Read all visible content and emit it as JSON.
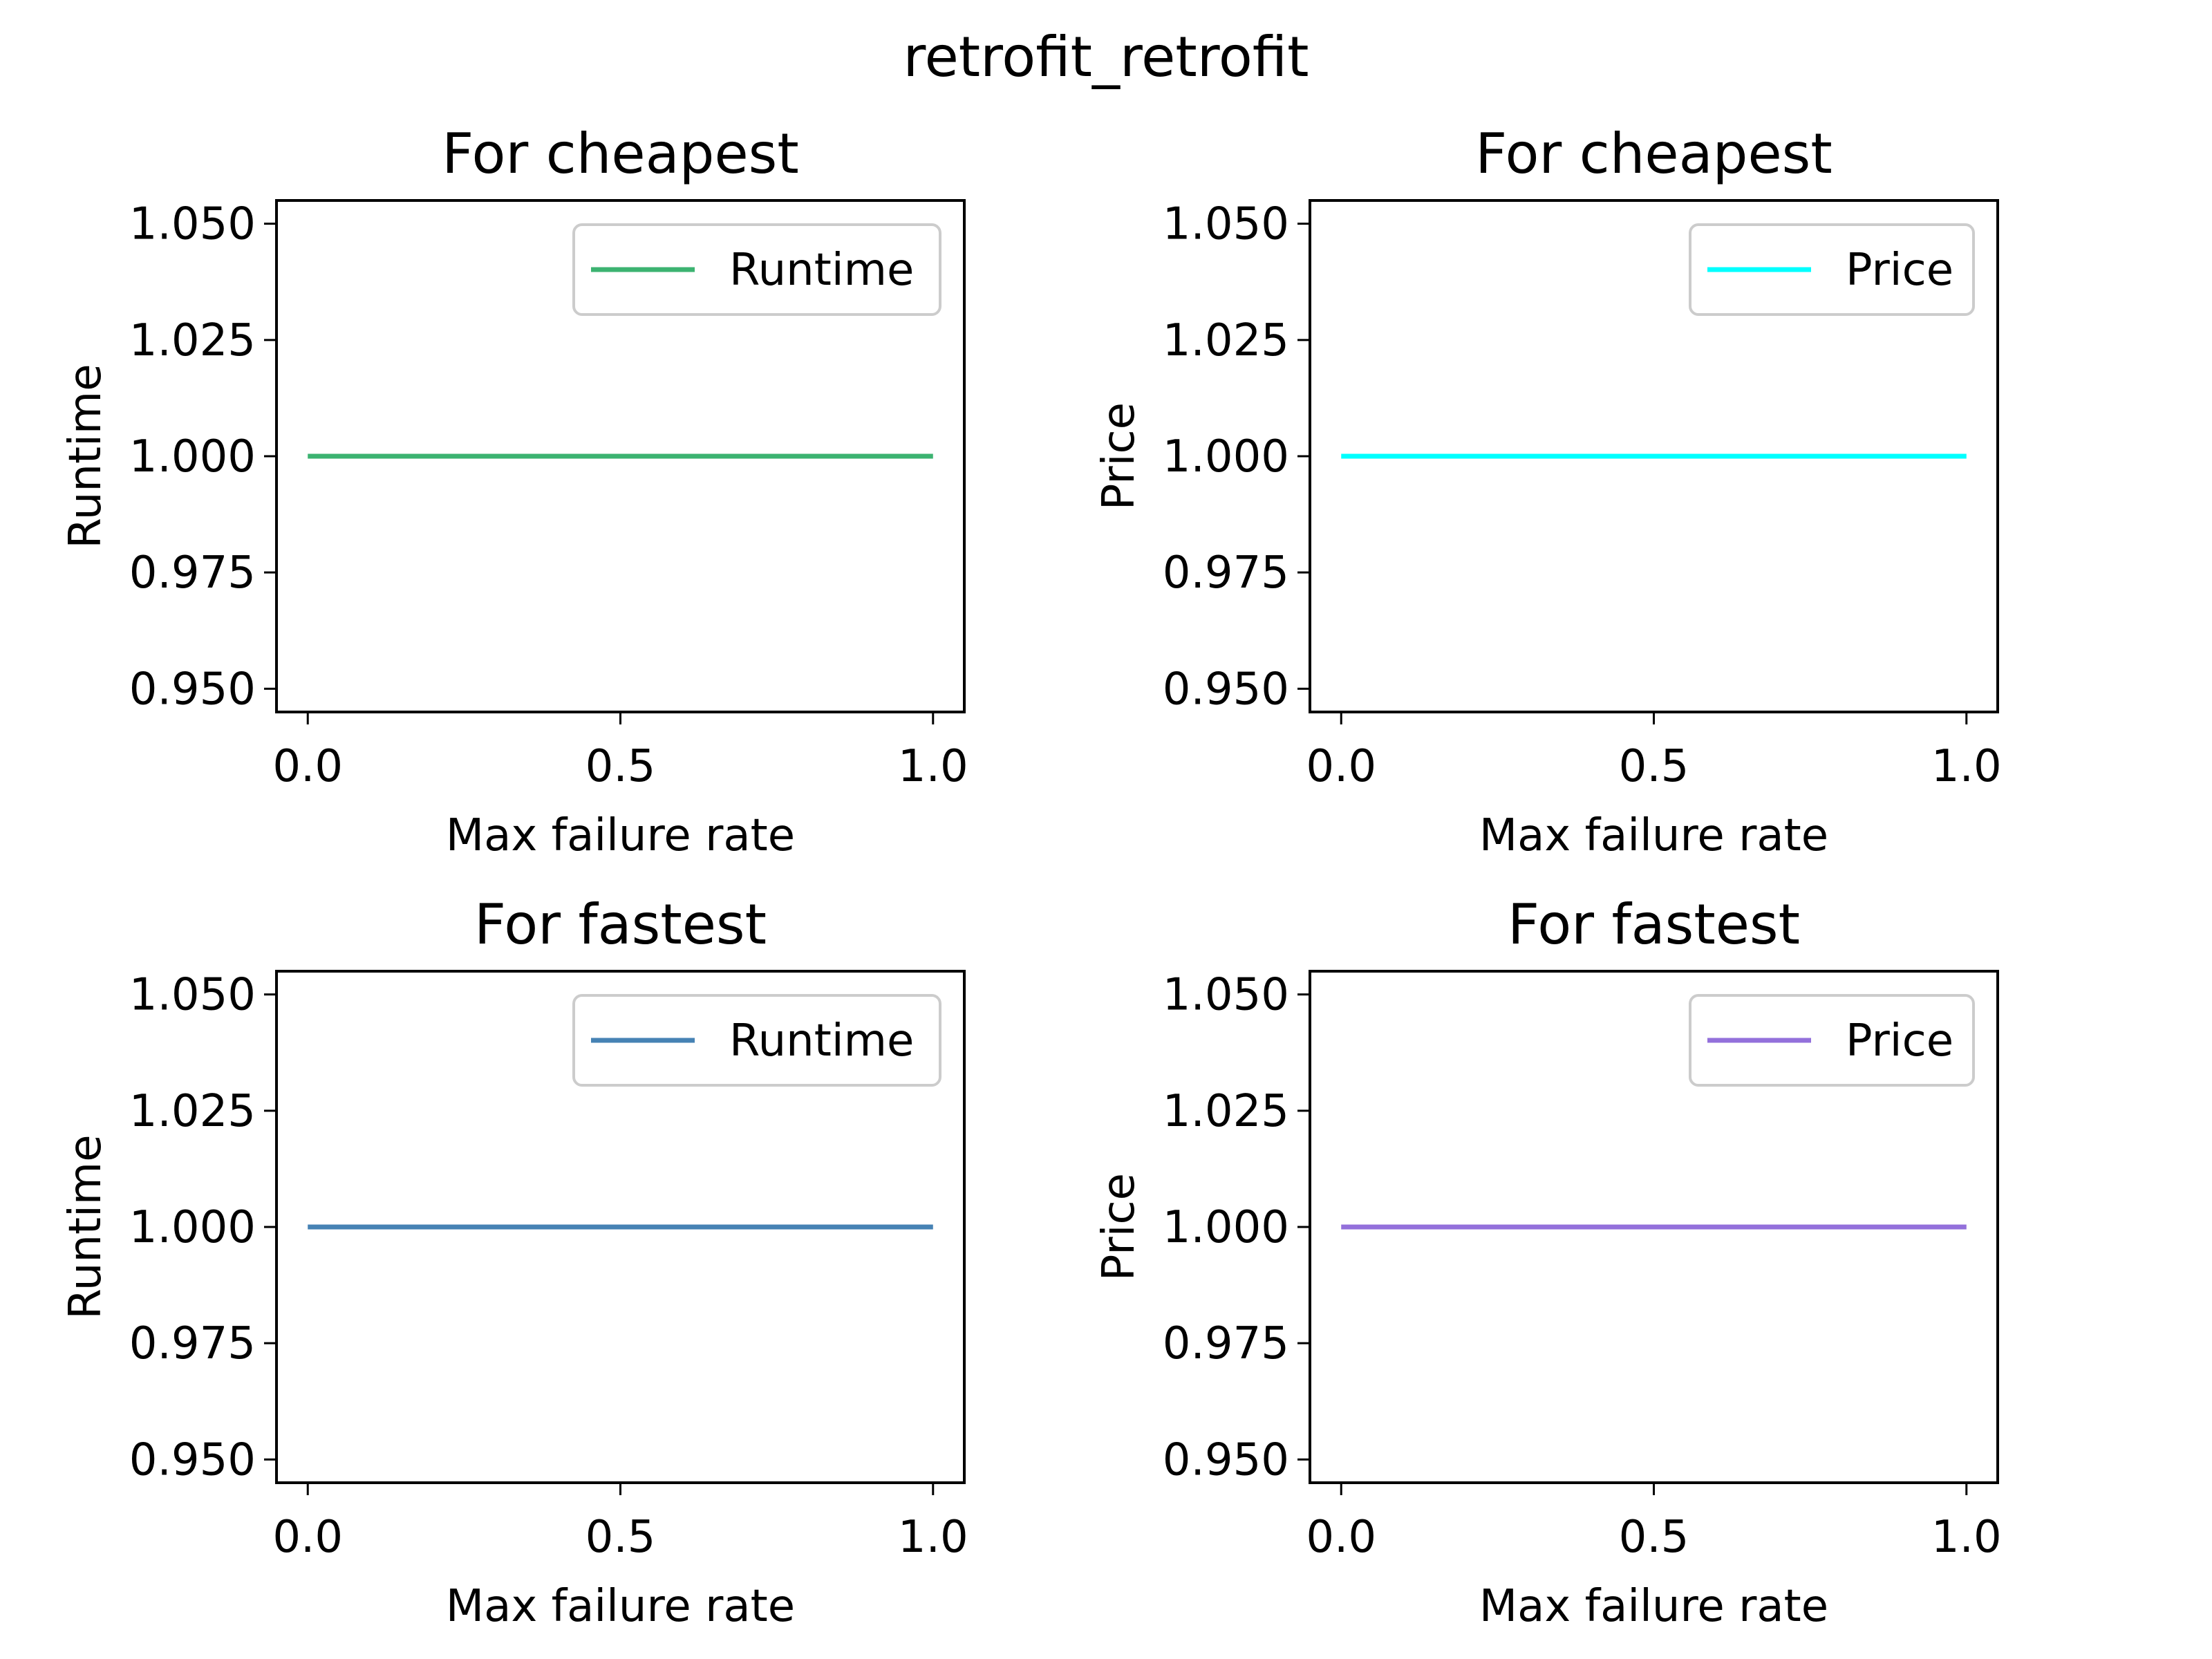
{
  "figure": {
    "suptitle": "retrofit_retrofit"
  },
  "chart_data": [
    {
      "type": "line",
      "title": "For cheapest",
      "xlabel": "Max failure rate",
      "ylabel": "Runtime",
      "xlim": [
        -0.05,
        1.05
      ],
      "ylim": [
        0.945,
        1.055
      ],
      "xticks": [
        0.0,
        0.5,
        1.0
      ],
      "xtick_labels": [
        "0.0",
        "0.5",
        "1.0"
      ],
      "yticks": [
        0.95,
        0.975,
        1.0,
        1.025,
        1.05
      ],
      "ytick_labels": [
        "0.950",
        "0.975",
        "1.000",
        "1.025",
        "1.050"
      ],
      "grid": false,
      "legend_position": "upper right",
      "series": [
        {
          "name": "Runtime",
          "color": "#3cb371",
          "x": [
            0.0,
            1.0
          ],
          "y": [
            1.0,
            1.0
          ]
        }
      ]
    },
    {
      "type": "line",
      "title": "For cheapest",
      "xlabel": "Max failure rate",
      "ylabel": "Price",
      "xlim": [
        -0.05,
        1.05
      ],
      "ylim": [
        0.945,
        1.055
      ],
      "xticks": [
        0.0,
        0.5,
        1.0
      ],
      "xtick_labels": [
        "0.0",
        "0.5",
        "1.0"
      ],
      "yticks": [
        0.95,
        0.975,
        1.0,
        1.025,
        1.05
      ],
      "ytick_labels": [
        "0.950",
        "0.975",
        "1.000",
        "1.025",
        "1.050"
      ],
      "grid": false,
      "legend_position": "upper right",
      "series": [
        {
          "name": "Price",
          "color": "#00ffff",
          "x": [
            0.0,
            1.0
          ],
          "y": [
            1.0,
            1.0
          ]
        }
      ]
    },
    {
      "type": "line",
      "title": "For fastest",
      "xlabel": "Max failure rate",
      "ylabel": "Runtime",
      "xlim": [
        -0.05,
        1.05
      ],
      "ylim": [
        0.945,
        1.055
      ],
      "xticks": [
        0.0,
        0.5,
        1.0
      ],
      "xtick_labels": [
        "0.0",
        "0.5",
        "1.0"
      ],
      "yticks": [
        0.95,
        0.975,
        1.0,
        1.025,
        1.05
      ],
      "ytick_labels": [
        "0.950",
        "0.975",
        "1.000",
        "1.025",
        "1.050"
      ],
      "grid": false,
      "legend_position": "upper right",
      "series": [
        {
          "name": "Runtime",
          "color": "#4682b4",
          "x": [
            0.0,
            1.0
          ],
          "y": [
            1.0,
            1.0
          ]
        }
      ]
    },
    {
      "type": "line",
      "title": "For fastest",
      "xlabel": "Max failure rate",
      "ylabel": "Price",
      "xlim": [
        -0.05,
        1.05
      ],
      "ylim": [
        0.945,
        1.055
      ],
      "xticks": [
        0.0,
        0.5,
        1.0
      ],
      "xtick_labels": [
        "0.0",
        "0.5",
        "1.0"
      ],
      "yticks": [
        0.95,
        0.975,
        1.0,
        1.025,
        1.05
      ],
      "ytick_labels": [
        "0.950",
        "0.975",
        "1.000",
        "1.025",
        "1.050"
      ],
      "grid": false,
      "legend_position": "upper right",
      "series": [
        {
          "name": "Price",
          "color": "#9370db",
          "x": [
            0.0,
            1.0
          ],
          "y": [
            1.0,
            1.0
          ]
        }
      ]
    }
  ]
}
